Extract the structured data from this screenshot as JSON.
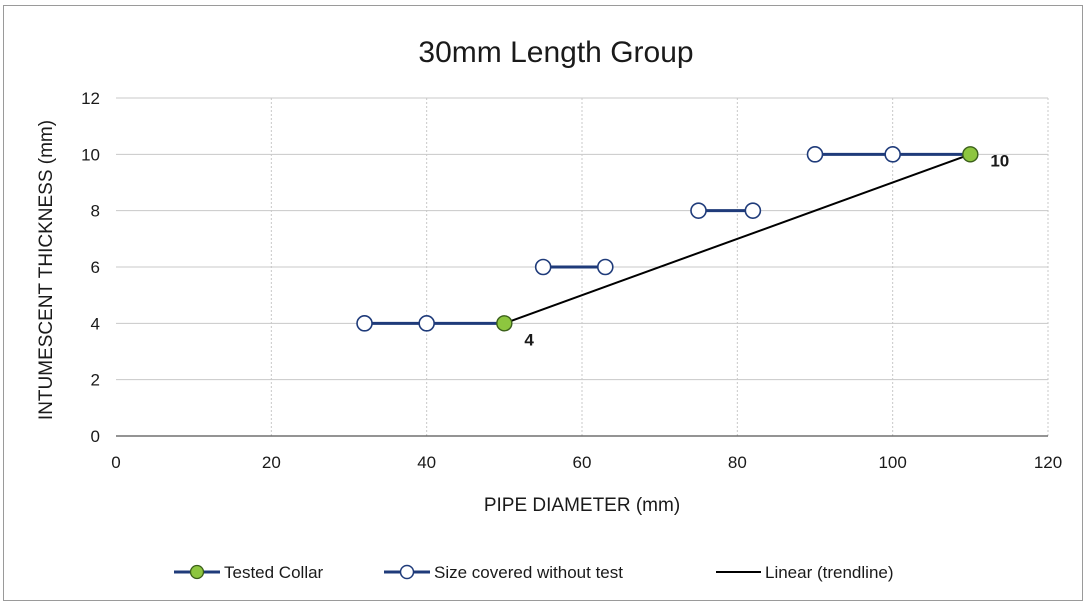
{
  "chart_data": {
    "type": "line",
    "title": "30mm Length Group",
    "xlabel": "PIPE DIAMETER (mm)",
    "ylabel": "INTUMESCENT THICKNESS (mm)",
    "xlim": [
      0,
      120
    ],
    "ylim": [
      0,
      12
    ],
    "xticks": [
      0,
      20,
      40,
      60,
      80,
      100,
      120
    ],
    "yticks": [
      0,
      2,
      4,
      6,
      8,
      10,
      12
    ],
    "grid": true,
    "legend_position": "bottom",
    "series": [
      {
        "name": "Tested Collar",
        "marker": "filled-circle",
        "line_color": "#1f3b7a",
        "marker_fill": "#8dc63f",
        "points": [
          {
            "x": 50,
            "y": 4,
            "label": "4"
          },
          {
            "x": 110,
            "y": 10,
            "label": "10"
          }
        ]
      },
      {
        "name": "Size covered without test",
        "marker": "hollow-circle",
        "line_color": "#1f3b7a",
        "segments": [
          [
            {
              "x": 32,
              "y": 4
            },
            {
              "x": 40,
              "y": 4
            },
            {
              "x": 50,
              "y": 4
            }
          ],
          [
            {
              "x": 55,
              "y": 6
            },
            {
              "x": 63,
              "y": 6
            }
          ],
          [
            {
              "x": 75,
              "y": 8
            },
            {
              "x": 82,
              "y": 8
            }
          ],
          [
            {
              "x": 90,
              "y": 10
            },
            {
              "x": 100,
              "y": 10
            },
            {
              "x": 110,
              "y": 10
            }
          ]
        ],
        "markers": [
          {
            "x": 32,
            "y": 4
          },
          {
            "x": 40,
            "y": 4
          },
          {
            "x": 55,
            "y": 6
          },
          {
            "x": 63,
            "y": 6
          },
          {
            "x": 75,
            "y": 8
          },
          {
            "x": 82,
            "y": 8
          },
          {
            "x": 90,
            "y": 10
          },
          {
            "x": 100,
            "y": 10
          }
        ]
      },
      {
        "name": "Linear (trendline)",
        "marker": "none",
        "line_color": "#000000",
        "points": [
          {
            "x": 50,
            "y": 4
          },
          {
            "x": 110,
            "y": 10
          }
        ]
      }
    ]
  },
  "colors": {
    "series_line": "#1f3b7a",
    "tested_fill": "#8dc63f",
    "trendline": "#000000",
    "grid": "#c8c8c8"
  }
}
